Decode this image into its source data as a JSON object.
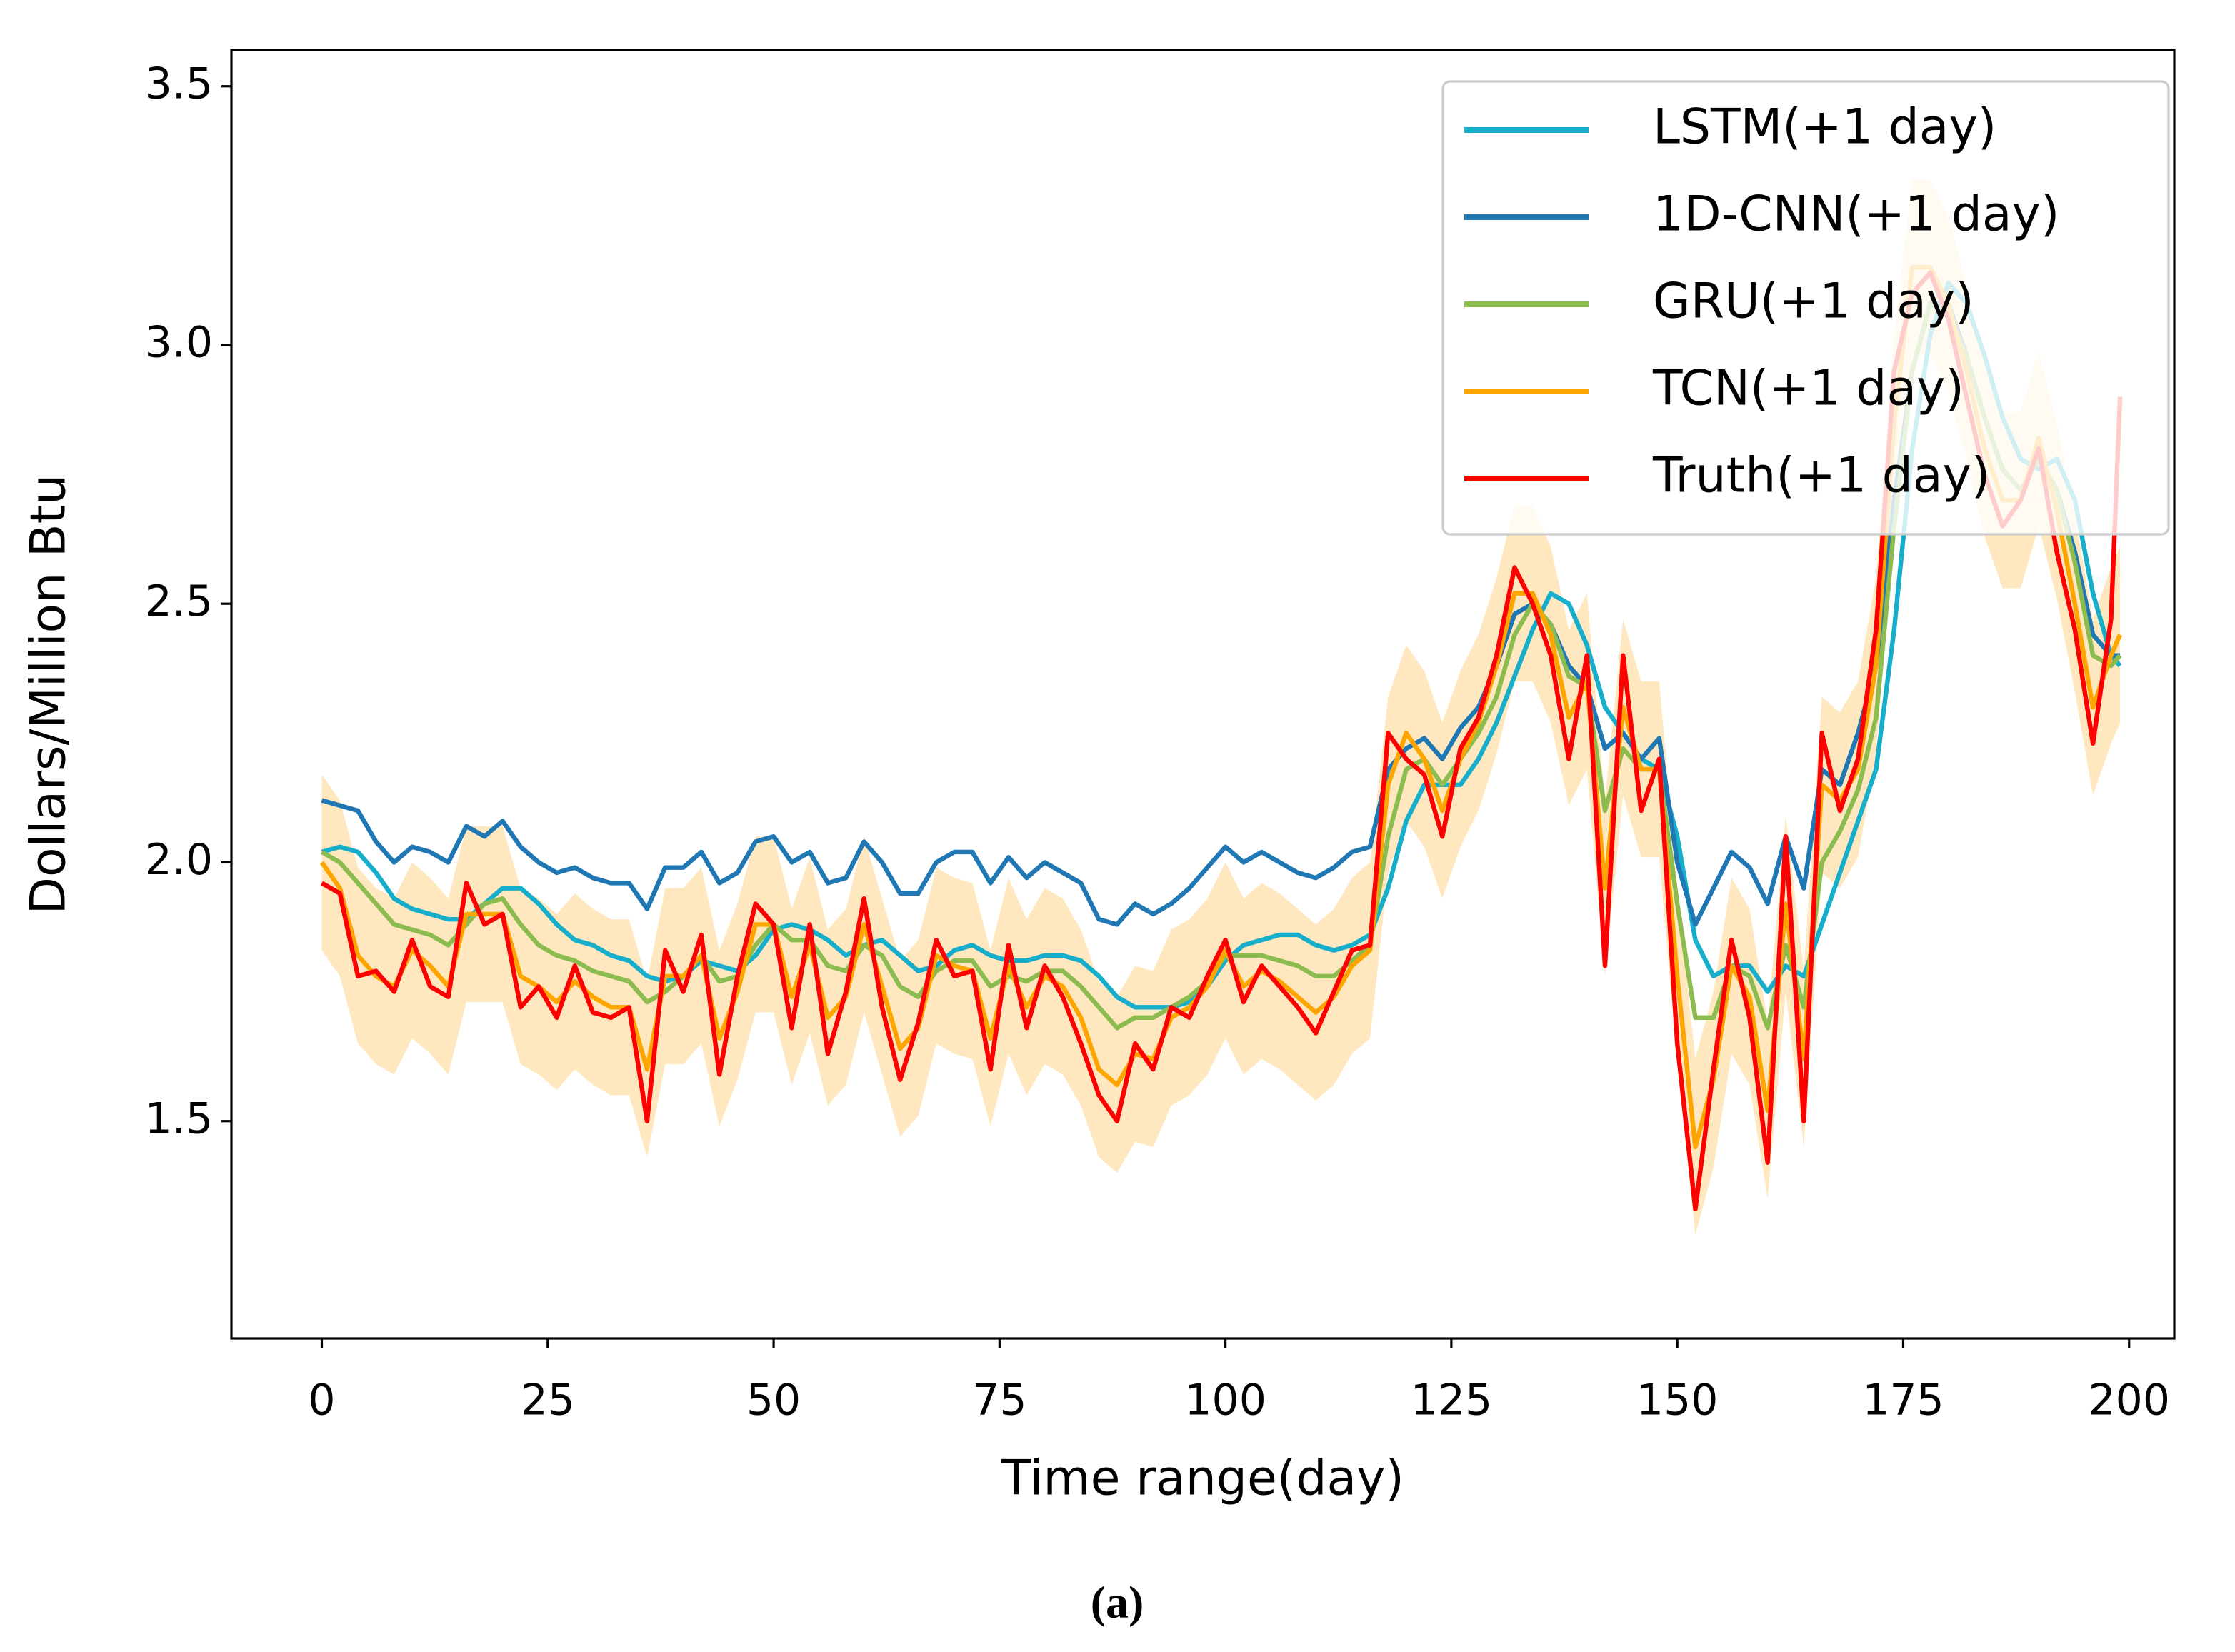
{
  "chart_data": {
    "type": "line",
    "caption": "(a)",
    "xlabel": "Time range(day)",
    "ylabel": "Dollars/Million Btu",
    "xlim": [
      -10,
      205
    ],
    "ylim": [
      1.08,
      3.57
    ],
    "xticks": [
      0,
      25,
      50,
      75,
      100,
      125,
      150,
      175,
      200
    ],
    "yticks": [
      1.5,
      {
        "value": 2,
        "label": "2.0"
      },
      2.5,
      {
        "value": 3,
        "label": "3.0"
      },
      3.5
    ],
    "grid": false,
    "legend": "upper right",
    "x": [
      0,
      2,
      4,
      6,
      8,
      10,
      12,
      14,
      16,
      18,
      20,
      22,
      24,
      26,
      28,
      30,
      32,
      34,
      36,
      38,
      40,
      42,
      44,
      46,
      48,
      50,
      52,
      54,
      56,
      58,
      60,
      62,
      64,
      66,
      68,
      70,
      72,
      74,
      76,
      78,
      80,
      82,
      84,
      86,
      88,
      90,
      92,
      94,
      96,
      98,
      100,
      102,
      104,
      106,
      108,
      110,
      112,
      114,
      116,
      118,
      120,
      122,
      124,
      126,
      128,
      130,
      132,
      134,
      136,
      138,
      140,
      142,
      144,
      146,
      148,
      150,
      152,
      154,
      156,
      158,
      160,
      162,
      164,
      166,
      168,
      170,
      172,
      174,
      176,
      178,
      180,
      182,
      184,
      186,
      188,
      190,
      192,
      194,
      196,
      198,
      199
    ],
    "band": {
      "color": "#ffe6b8",
      "lower": [
        1.83,
        1.78,
        1.65,
        1.61,
        1.59,
        1.66,
        1.63,
        1.59,
        1.73,
        1.73,
        1.73,
        1.61,
        1.59,
        1.56,
        1.6,
        1.57,
        1.55,
        1.55,
        1.43,
        1.61,
        1.61,
        1.65,
        1.49,
        1.58,
        1.71,
        1.71,
        1.57,
        1.67,
        1.53,
        1.57,
        1.71,
        1.59,
        1.47,
        1.51,
        1.65,
        1.63,
        1.62,
        1.49,
        1.63,
        1.55,
        1.61,
        1.59,
        1.53,
        1.43,
        1.4,
        1.46,
        1.45,
        1.53,
        1.55,
        1.59,
        1.66,
        1.59,
        1.62,
        1.6,
        1.57,
        1.54,
        1.57,
        1.63,
        1.66,
        1.98,
        2.08,
        2.03,
        1.93,
        2.03,
        2.1,
        2.21,
        2.35,
        2.35,
        2.27,
        2.11,
        2.18,
        1.78,
        2.13,
        2.01,
        2.01,
        1.61,
        1.28,
        1.41,
        1.63,
        1.57,
        1.35,
        1.75,
        1.45,
        1.98,
        1.95,
        2.01,
        2.21,
        2.68,
        2.98,
        2.98,
        2.91,
        2.78,
        2.63,
        2.53,
        2.53,
        2.65,
        2.51,
        2.33,
        2.13,
        2.23,
        2.27
      ],
      "upper": [
        2.17,
        2.12,
        1.99,
        1.95,
        1.93,
        2.0,
        1.97,
        1.93,
        2.07,
        2.07,
        2.07,
        1.95,
        1.93,
        1.9,
        1.94,
        1.91,
        1.89,
        1.89,
        1.77,
        1.95,
        1.95,
        1.99,
        1.83,
        1.92,
        2.05,
        2.05,
        1.91,
        2.01,
        1.87,
        1.91,
        2.05,
        1.93,
        1.81,
        1.85,
        1.99,
        1.97,
        1.96,
        1.83,
        1.97,
        1.89,
        1.95,
        1.93,
        1.87,
        1.77,
        1.74,
        1.8,
        1.79,
        1.87,
        1.89,
        1.93,
        2.0,
        1.93,
        1.96,
        1.94,
        1.91,
        1.88,
        1.91,
        1.97,
        2.0,
        2.32,
        2.42,
        2.37,
        2.27,
        2.37,
        2.44,
        2.55,
        2.69,
        2.69,
        2.61,
        2.45,
        2.52,
        2.12,
        2.47,
        2.35,
        2.35,
        1.95,
        1.62,
        1.75,
        1.97,
        1.91,
        1.69,
        2.09,
        1.79,
        2.32,
        2.29,
        2.35,
        2.55,
        3.02,
        3.32,
        3.32,
        3.25,
        3.12,
        2.97,
        2.87,
        2.87,
        2.99,
        2.85,
        2.67,
        2.47,
        2.57,
        2.61
      ]
    },
    "series": [
      {
        "name": "LSTM(+1 day)",
        "color": "#17aecb",
        "values": [
          2.02,
          2.03,
          2.02,
          1.98,
          1.93,
          1.91,
          1.9,
          1.89,
          1.89,
          1.92,
          1.95,
          1.95,
          1.92,
          1.88,
          1.85,
          1.84,
          1.82,
          1.81,
          1.78,
          1.77,
          1.78,
          1.81,
          1.8,
          1.79,
          1.82,
          1.87,
          1.88,
          1.87,
          1.85,
          1.82,
          1.84,
          1.85,
          1.82,
          1.79,
          1.8,
          1.83,
          1.84,
          1.82,
          1.81,
          1.81,
          1.82,
          1.82,
          1.81,
          1.78,
          1.74,
          1.72,
          1.72,
          1.72,
          1.73,
          1.76,
          1.81,
          1.84,
          1.85,
          1.86,
          1.86,
          1.84,
          1.83,
          1.84,
          1.86,
          1.95,
          2.08,
          2.15,
          2.15,
          2.15,
          2.2,
          2.27,
          2.36,
          2.45,
          2.52,
          2.5,
          2.42,
          2.3,
          2.25,
          2.2,
          2.18,
          2.05,
          1.85,
          1.78,
          1.8,
          1.8,
          1.75,
          1.8,
          1.78,
          1.88,
          1.98,
          2.08,
          2.18,
          2.45,
          2.8,
          3.02,
          3.12,
          3.08,
          2.98,
          2.86,
          2.78,
          2.76,
          2.78,
          2.7,
          2.52,
          2.4,
          2.38
        ]
      },
      {
        "name": "1D-CNN(+1 day)",
        "color": "#1f77b4",
        "values": [
          2.12,
          2.11,
          2.1,
          2.04,
          2.0,
          2.03,
          2.02,
          2.0,
          2.07,
          2.05,
          2.08,
          2.03,
          2.0,
          1.98,
          1.99,
          1.97,
          1.96,
          1.96,
          1.91,
          1.99,
          1.99,
          2.02,
          1.96,
          1.98,
          2.04,
          2.05,
          2.0,
          2.02,
          1.96,
          1.97,
          2.04,
          2.0,
          1.94,
          1.94,
          2.0,
          2.02,
          2.02,
          1.96,
          2.01,
          1.97,
          2.0,
          1.98,
          1.96,
          1.89,
          1.88,
          1.92,
          1.9,
          1.92,
          1.95,
          1.99,
          2.03,
          2.0,
          2.02,
          2.0,
          1.98,
          1.97,
          1.99,
          2.02,
          2.03,
          2.18,
          2.22,
          2.24,
          2.2,
          2.26,
          2.3,
          2.38,
          2.48,
          2.5,
          2.46,
          2.38,
          2.34,
          2.22,
          2.25,
          2.2,
          2.24,
          2.0,
          1.88,
          1.95,
          2.02,
          1.99,
          1.92,
          2.05,
          1.95,
          2.18,
          2.15,
          2.25,
          2.38,
          2.7,
          2.95,
          3.08,
          3.08,
          2.98,
          2.86,
          2.76,
          2.72,
          2.78,
          2.72,
          2.6,
          2.44,
          2.4,
          2.4
        ]
      },
      {
        "name": "GRU(+1 day)",
        "color": "#8cbc4f",
        "values": [
          2.02,
          2.0,
          1.96,
          1.92,
          1.88,
          1.87,
          1.86,
          1.84,
          1.88,
          1.92,
          1.93,
          1.88,
          1.84,
          1.82,
          1.81,
          1.79,
          1.78,
          1.77,
          1.73,
          1.75,
          1.78,
          1.82,
          1.77,
          1.78,
          1.84,
          1.88,
          1.85,
          1.85,
          1.8,
          1.79,
          1.84,
          1.82,
          1.76,
          1.74,
          1.79,
          1.81,
          1.81,
          1.76,
          1.78,
          1.77,
          1.79,
          1.79,
          1.76,
          1.72,
          1.68,
          1.7,
          1.7,
          1.72,
          1.74,
          1.77,
          1.82,
          1.82,
          1.82,
          1.81,
          1.8,
          1.78,
          1.78,
          1.81,
          1.84,
          2.05,
          2.18,
          2.2,
          2.15,
          2.2,
          2.25,
          2.32,
          2.44,
          2.5,
          2.46,
          2.36,
          2.34,
          2.1,
          2.22,
          2.18,
          2.18,
          1.92,
          1.7,
          1.7,
          1.8,
          1.78,
          1.68,
          1.84,
          1.72,
          2.0,
          2.06,
          2.14,
          2.28,
          2.65,
          2.95,
          3.08,
          3.06,
          2.98,
          2.86,
          2.76,
          2.72,
          2.78,
          2.72,
          2.58,
          2.4,
          2.38,
          2.4
        ]
      },
      {
        "name": "TCN(+1 day)",
        "color": "#ffa500",
        "values": [
          2.0,
          1.95,
          1.82,
          1.78,
          1.76,
          1.83,
          1.8,
          1.76,
          1.9,
          1.9,
          1.9,
          1.78,
          1.76,
          1.73,
          1.77,
          1.74,
          1.72,
          1.72,
          1.6,
          1.78,
          1.78,
          1.82,
          1.66,
          1.75,
          1.88,
          1.88,
          1.74,
          1.84,
          1.7,
          1.74,
          1.88,
          1.76,
          1.64,
          1.68,
          1.82,
          1.8,
          1.79,
          1.66,
          1.8,
          1.72,
          1.78,
          1.76,
          1.7,
          1.6,
          1.57,
          1.63,
          1.62,
          1.7,
          1.72,
          1.76,
          1.83,
          1.76,
          1.79,
          1.77,
          1.74,
          1.71,
          1.74,
          1.8,
          1.83,
          2.15,
          2.25,
          2.2,
          2.1,
          2.2,
          2.27,
          2.38,
          2.52,
          2.52,
          2.44,
          2.28,
          2.35,
          1.95,
          2.3,
          2.18,
          2.18,
          1.78,
          1.45,
          1.58,
          1.8,
          1.74,
          1.52,
          1.92,
          1.62,
          2.15,
          2.12,
          2.18,
          2.38,
          2.85,
          3.15,
          3.15,
          3.08,
          2.95,
          2.8,
          2.7,
          2.7,
          2.82,
          2.68,
          2.5,
          2.3,
          2.4,
          2.44
        ]
      },
      {
        "name": "Truth(+1 day)",
        "color": "#ff0000",
        "values": [
          1.96,
          1.94,
          1.78,
          1.79,
          1.75,
          1.85,
          1.76,
          1.74,
          1.96,
          1.88,
          1.9,
          1.72,
          1.76,
          1.7,
          1.8,
          1.71,
          1.7,
          1.72,
          1.5,
          1.83,
          1.75,
          1.86,
          1.59,
          1.78,
          1.92,
          1.88,
          1.68,
          1.88,
          1.63,
          1.75,
          1.93,
          1.72,
          1.58,
          1.69,
          1.85,
          1.78,
          1.79,
          1.6,
          1.84,
          1.68,
          1.8,
          1.74,
          1.65,
          1.55,
          1.5,
          1.65,
          1.6,
          1.72,
          1.7,
          1.78,
          1.85,
          1.73,
          1.8,
          1.76,
          1.72,
          1.67,
          1.75,
          1.83,
          1.84,
          2.25,
          2.2,
          2.17,
          2.05,
          2.22,
          2.28,
          2.4,
          2.57,
          2.5,
          2.4,
          2.2,
          2.4,
          1.8,
          2.4,
          2.1,
          2.2,
          1.65,
          1.33,
          1.6,
          1.85,
          1.7,
          1.42,
          2.05,
          1.5,
          2.25,
          2.1,
          2.2,
          2.45,
          2.95,
          3.1,
          3.14,
          3.05,
          2.9,
          2.75,
          2.65,
          2.7,
          2.8,
          2.6,
          2.45,
          2.23,
          2.47,
          2.9
        ]
      }
    ]
  }
}
